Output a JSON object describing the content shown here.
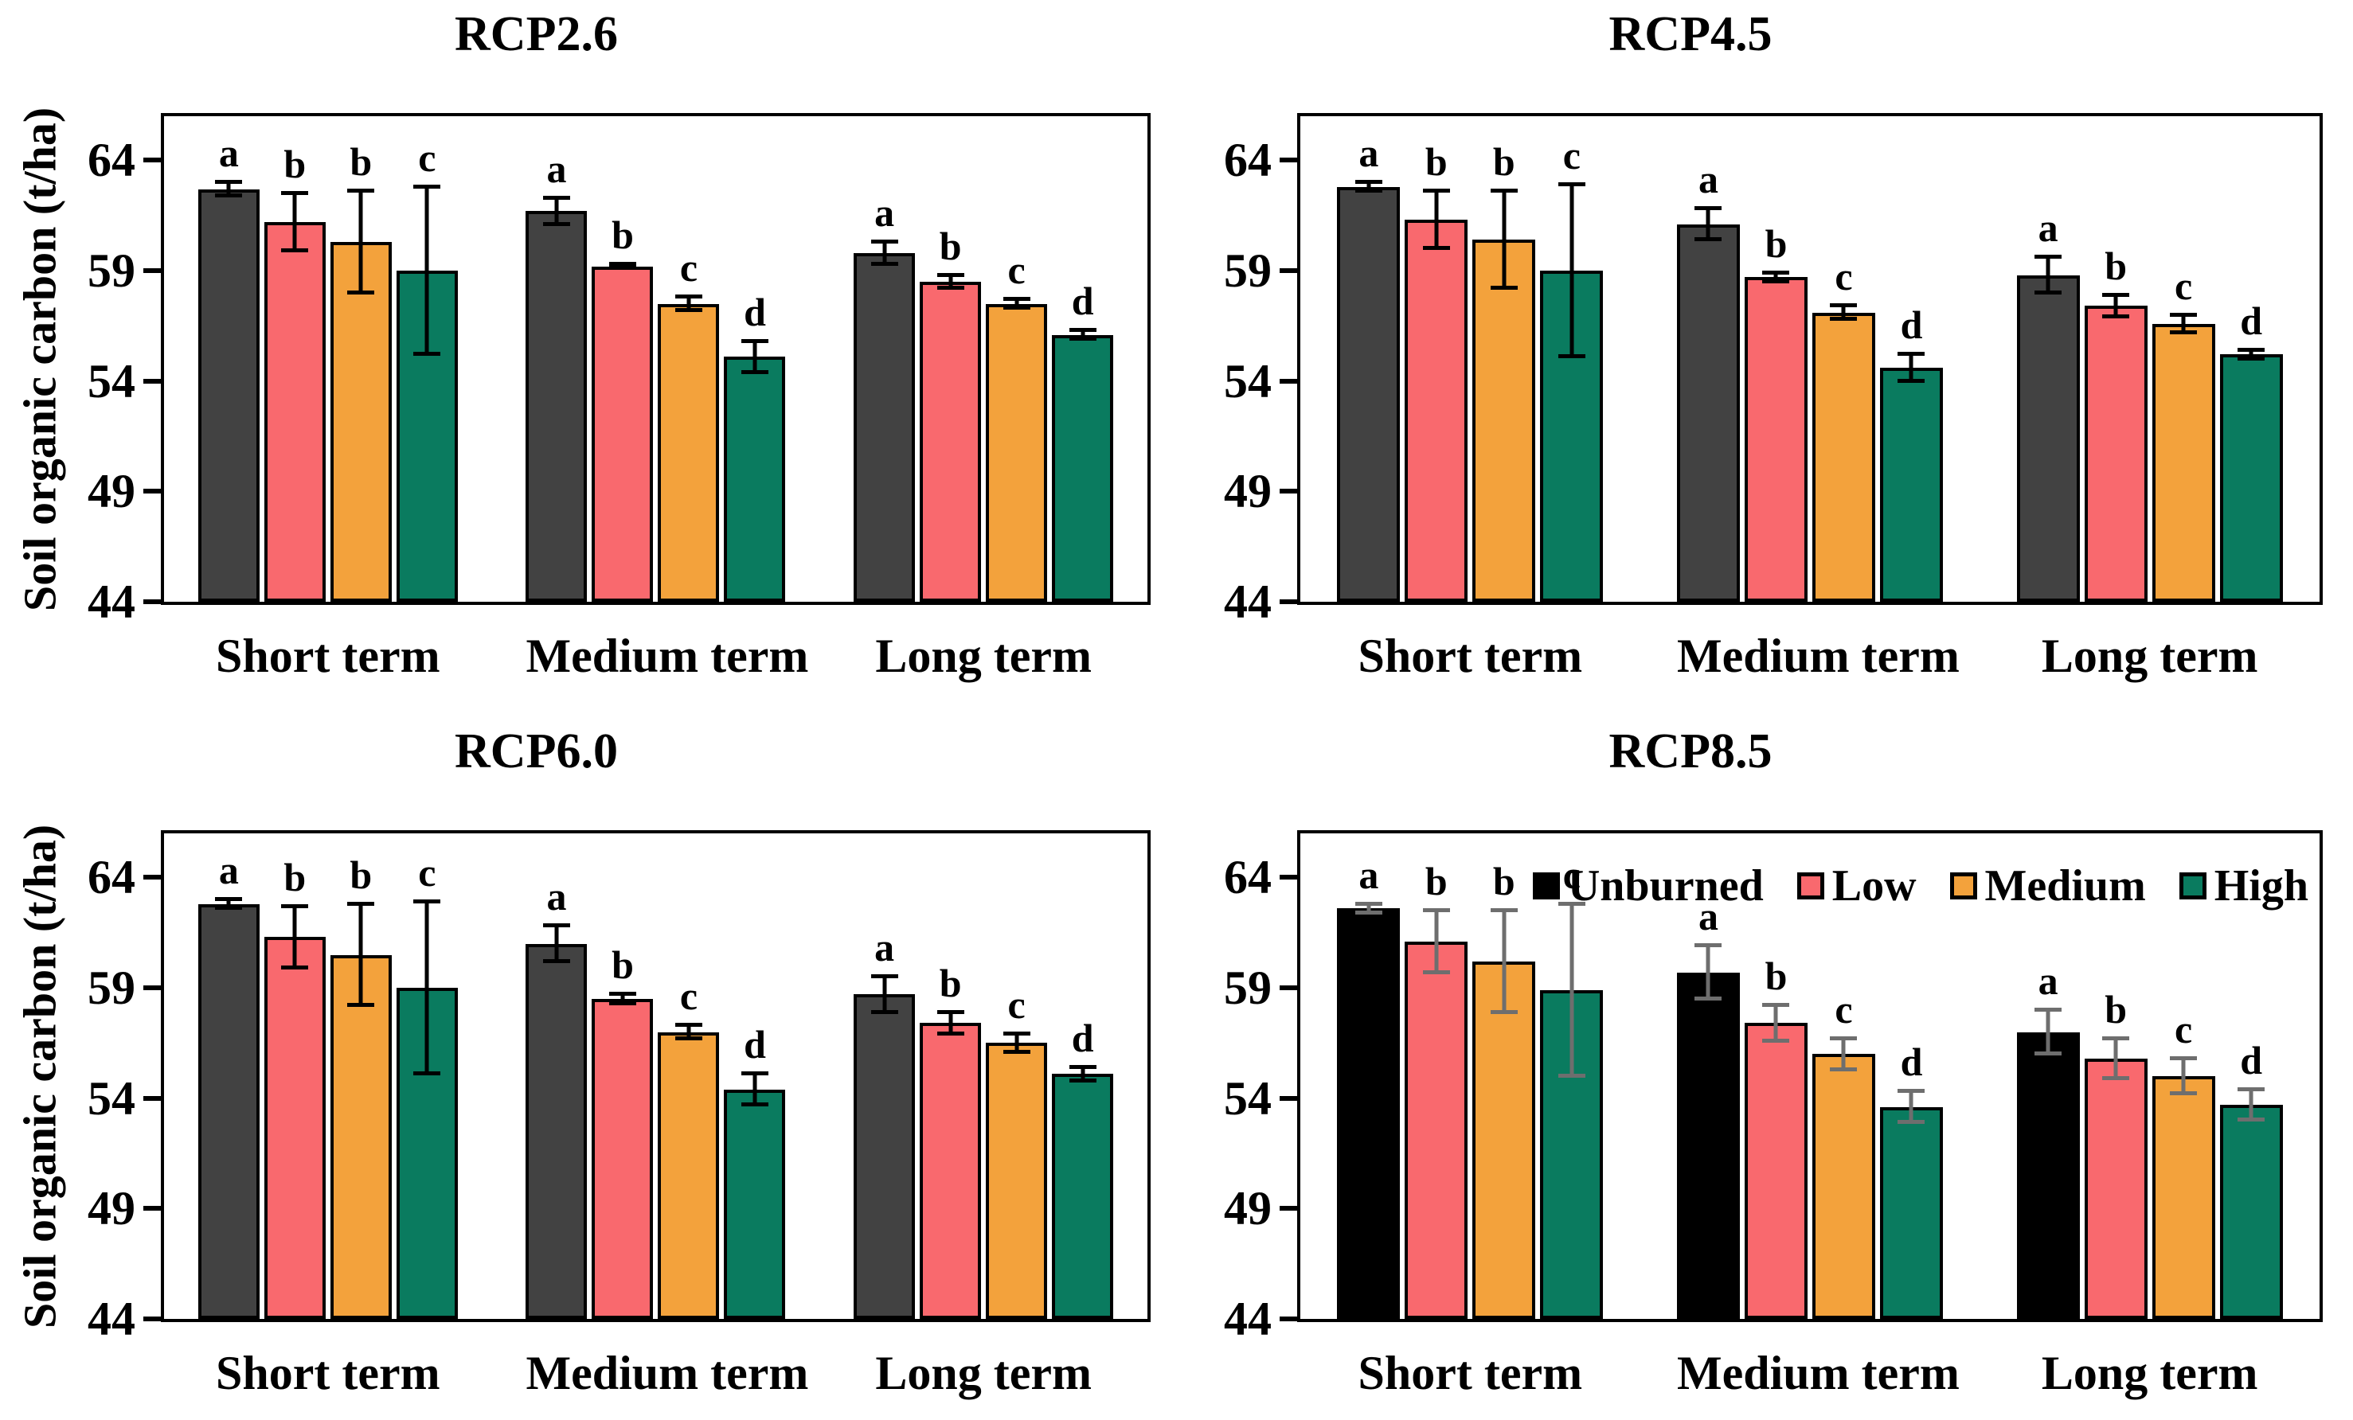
{
  "figure": {
    "ylabel": "Soil organic carbon (t/ha)",
    "background_color": "#ffffff",
    "categories": [
      "Short term",
      "Medium term",
      "Long term"
    ],
    "y_ticks": [
      64,
      59,
      54,
      49,
      44
    ],
    "ylim": [
      44,
      66
    ],
    "legend": {
      "items": [
        {
          "label": "Unburned",
          "color": "#000000"
        },
        {
          "label": "Low",
          "color": "#f9696e"
        },
        {
          "label": "Medium",
          "color": "#f3a23c"
        },
        {
          "label": "High",
          "color": "#0a7b5f"
        }
      ]
    }
  },
  "chart_data": [
    {
      "type": "bar",
      "title": "RCP2.6",
      "xlabel": "",
      "ylabel": "Soil organic carbon (t/ha)",
      "ylim": [
        44,
        66
      ],
      "y_ticks": [
        64,
        59,
        54,
        49,
        44
      ],
      "categories": [
        "Short term",
        "Medium term",
        "Long term"
      ],
      "grid": false,
      "legend_visible": false,
      "errorbar_color": "#000000",
      "series": [
        {
          "name": "Unburned",
          "color": "#424242",
          "values": [
            62.7,
            61.7,
            59.8
          ],
          "errors": [
            0.3,
            0.6,
            0.5
          ],
          "letters": [
            "a",
            "a",
            "a"
          ]
        },
        {
          "name": "Low",
          "color": "#f9696e",
          "values": [
            61.2,
            59.2,
            58.5
          ],
          "errors": [
            1.3,
            0.1,
            0.3
          ],
          "letters": [
            "b",
            "b",
            "b"
          ]
        },
        {
          "name": "Medium",
          "color": "#f3a23c",
          "values": [
            60.3,
            57.5,
            57.5
          ],
          "errors": [
            2.3,
            0.3,
            0.2
          ],
          "letters": [
            "b",
            "c",
            "c"
          ]
        },
        {
          "name": "High",
          "color": "#0a7b5f",
          "values": [
            59.0,
            55.1,
            56.1
          ],
          "errors": [
            3.8,
            0.7,
            0.2
          ],
          "letters": [
            "c",
            "d",
            "d"
          ]
        }
      ]
    },
    {
      "type": "bar",
      "title": "RCP4.5",
      "xlabel": "",
      "ylabel": "",
      "ylim": [
        44,
        66
      ],
      "y_ticks": [
        64,
        59,
        54,
        49,
        44
      ],
      "categories": [
        "Short term",
        "Medium term",
        "Long term"
      ],
      "grid": false,
      "legend_visible": false,
      "errorbar_color": "#000000",
      "series": [
        {
          "name": "Unburned",
          "color": "#424242",
          "values": [
            62.8,
            61.1,
            58.8
          ],
          "errors": [
            0.2,
            0.7,
            0.8
          ],
          "letters": [
            "a",
            "a",
            "a"
          ]
        },
        {
          "name": "Low",
          "color": "#f9696e",
          "values": [
            61.3,
            58.7,
            57.4
          ],
          "errors": [
            1.3,
            0.2,
            0.5
          ],
          "letters": [
            "b",
            "b",
            "b"
          ]
        },
        {
          "name": "Medium",
          "color": "#f3a23c",
          "values": [
            60.4,
            57.1,
            56.6
          ],
          "errors": [
            2.2,
            0.3,
            0.4
          ],
          "letters": [
            "b",
            "c",
            "c"
          ]
        },
        {
          "name": "High",
          "color": "#0a7b5f",
          "values": [
            59.0,
            54.6,
            55.2
          ],
          "errors": [
            3.9,
            0.6,
            0.2
          ],
          "letters": [
            "c",
            "d",
            "d"
          ]
        }
      ]
    },
    {
      "type": "bar",
      "title": "RCP6.0",
      "xlabel": "",
      "ylabel": "Soil organic carbon (t/ha)",
      "ylim": [
        44,
        66
      ],
      "y_ticks": [
        64,
        59,
        54,
        49,
        44
      ],
      "categories": [
        "Short term",
        "Medium term",
        "Long term"
      ],
      "grid": false,
      "legend_visible": false,
      "errorbar_color": "#000000",
      "series": [
        {
          "name": "Unburned",
          "color": "#424242",
          "values": [
            62.8,
            61.0,
            58.7
          ],
          "errors": [
            0.2,
            0.8,
            0.8
          ],
          "letters": [
            "a",
            "a",
            "a"
          ]
        },
        {
          "name": "Low",
          "color": "#f9696e",
          "values": [
            61.3,
            58.5,
            57.4
          ],
          "errors": [
            1.4,
            0.2,
            0.5
          ],
          "letters": [
            "b",
            "b",
            "b"
          ]
        },
        {
          "name": "Medium",
          "color": "#f3a23c",
          "values": [
            60.5,
            57.0,
            56.5
          ],
          "errors": [
            2.3,
            0.3,
            0.4
          ],
          "letters": [
            "b",
            "c",
            "c"
          ]
        },
        {
          "name": "High",
          "color": "#0a7b5f",
          "values": [
            59.0,
            54.4,
            55.1
          ],
          "errors": [
            3.9,
            0.7,
            0.3
          ],
          "letters": [
            "c",
            "d",
            "d"
          ]
        }
      ]
    },
    {
      "type": "bar",
      "title": "RCP8.5",
      "xlabel": "",
      "ylabel": "",
      "ylim": [
        44,
        66
      ],
      "y_ticks": [
        64,
        59,
        54,
        49,
        44
      ],
      "categories": [
        "Short term",
        "Medium term",
        "Long term"
      ],
      "grid": false,
      "legend_visible": true,
      "errorbar_color": "#6e6e6e",
      "series": [
        {
          "name": "Unburned",
          "color": "#000000",
          "values": [
            62.6,
            59.7,
            57.0
          ],
          "errors": [
            0.2,
            1.2,
            1.0
          ],
          "letters": [
            "a",
            "a",
            "a"
          ]
        },
        {
          "name": "Low",
          "color": "#f9696e",
          "values": [
            61.1,
            57.4,
            55.8
          ],
          "errors": [
            1.4,
            0.8,
            0.9
          ],
          "letters": [
            "b",
            "b",
            "b"
          ]
        },
        {
          "name": "Medium",
          "color": "#f3a23c",
          "values": [
            60.2,
            56.0,
            55.0
          ],
          "errors": [
            2.3,
            0.7,
            0.8
          ],
          "letters": [
            "b",
            "c",
            "c"
          ]
        },
        {
          "name": "High",
          "color": "#0a7b5f",
          "values": [
            58.9,
            53.6,
            53.7
          ],
          "errors": [
            3.9,
            0.7,
            0.7
          ],
          "letters": [
            "c",
            "d",
            "d"
          ]
        }
      ]
    }
  ]
}
